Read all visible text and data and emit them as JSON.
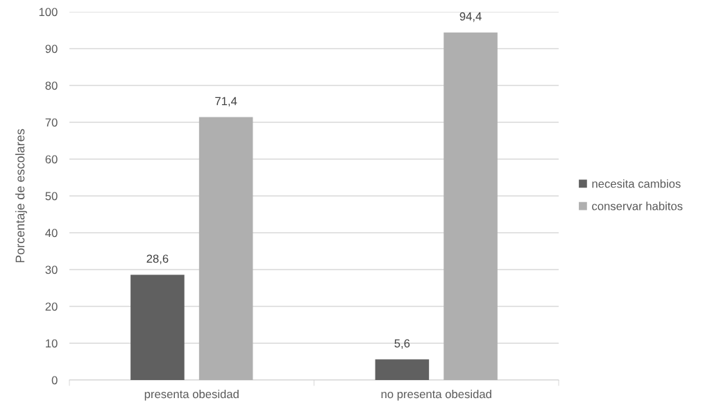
{
  "chart_data": {
    "type": "bar",
    "ylabel": "Porcentaje de escolares",
    "categories": [
      "presenta obesidad",
      "no presenta obesidad"
    ],
    "series": [
      {
        "name": "necesita cambios",
        "color": "#606060",
        "values": [
          28.6,
          5.6
        ],
        "value_labels": [
          "28,6",
          "5,6"
        ]
      },
      {
        "name": "conservar habitos",
        "color": "#afafaf",
        "values": [
          71.4,
          94.4
        ],
        "value_labels": [
          "71,4",
          "94,4"
        ]
      }
    ],
    "ylim": [
      0,
      100
    ],
    "yticks": [
      0,
      10,
      20,
      30,
      40,
      50,
      60,
      70,
      80,
      90,
      100
    ],
    "grid": "y",
    "legend": "right"
  }
}
